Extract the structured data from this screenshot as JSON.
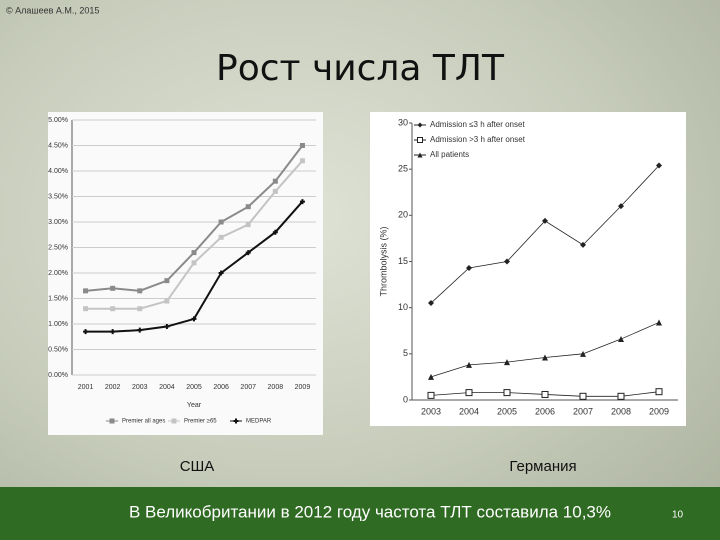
{
  "slide": {
    "copyright": "© Алашеев А.М., 2015",
    "title": "Рост числа ТЛТ",
    "footer": "В Великобритании в 2012 году частота ТЛТ составила 10,3%",
    "page": "10"
  },
  "chart_data": [
    {
      "type": "line",
      "caption": "США",
      "x_label": "Year",
      "grid": true,
      "categories": [
        "2001",
        "2002",
        "2003",
        "2004",
        "2005",
        "2006",
        "2007",
        "2008",
        "2009"
      ],
      "ylim": [
        0,
        5
      ],
      "yticks": [
        {
          "value": 0,
          "label": "0.00%"
        },
        {
          "value": 0.5,
          "label": "0.50%"
        },
        {
          "value": 1,
          "label": "1.00%"
        },
        {
          "value": 1.5,
          "label": "1.50%"
        },
        {
          "value": 2,
          "label": "2.00%"
        },
        {
          "value": 2.5,
          "label": "2.50%"
        },
        {
          "value": 3,
          "label": "3.00%"
        },
        {
          "value": 3.5,
          "label": "3.50%"
        },
        {
          "value": 4,
          "label": "4.00%"
        },
        {
          "value": 4.5,
          "label": "4.50%"
        },
        {
          "value": 5,
          "label": "5.00%"
        }
      ],
      "legend": "bottom",
      "series": [
        {
          "name": "Premier all ages",
          "color": "#8a8a8a",
          "marker": "square",
          "values": [
            1.65,
            1.7,
            1.65,
            1.85,
            2.4,
            3.0,
            3.3,
            3.8,
            4.5
          ]
        },
        {
          "name": "Premier ≥65",
          "color": "#c4c4c4",
          "marker": "square",
          "values": [
            1.3,
            1.3,
            1.3,
            1.45,
            2.2,
            2.7,
            2.95,
            3.6,
            4.2
          ]
        },
        {
          "name": "MEDPAR",
          "color": "#111111",
          "marker": "plus",
          "values": [
            0.85,
            0.85,
            0.88,
            0.95,
            1.1,
            2.0,
            2.4,
            2.8,
            3.4
          ]
        }
      ]
    },
    {
      "type": "line",
      "caption": "Германия",
      "y_label": "Thrombolysis (%)",
      "grid": false,
      "categories": [
        "2003",
        "2004",
        "2005",
        "2006",
        "2007",
        "2008",
        "2009"
      ],
      "ylim": [
        0,
        30
      ],
      "yticks": [
        0,
        5,
        10,
        15,
        20,
        25,
        30
      ],
      "legend": "top-left",
      "series": [
        {
          "name": "Admission ≤3 h after onset",
          "color": "#222222",
          "marker": "diamond",
          "values": [
            10.5,
            14.3,
            15,
            19.4,
            16.8,
            21,
            25.4
          ]
        },
        {
          "name": "Admission >3 h after onset",
          "color": "#222222",
          "marker": "open-square",
          "values": [
            0.5,
            0.8,
            0.8,
            0.6,
            0.4,
            0.4,
            0.9
          ]
        },
        {
          "name": "All patients",
          "color": "#222222",
          "marker": "triangle",
          "values": [
            2.5,
            3.8,
            4.1,
            4.6,
            5,
            6.6,
            8.4
          ]
        }
      ]
    }
  ]
}
